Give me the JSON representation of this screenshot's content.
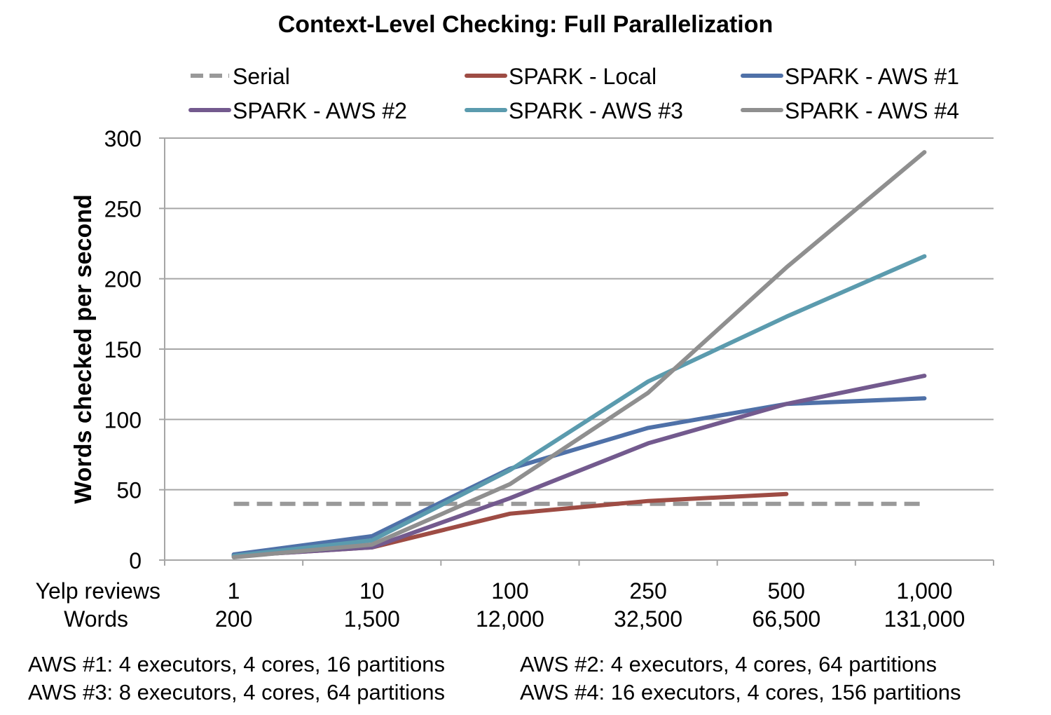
{
  "chart_data": {
    "type": "line",
    "title": "Context-Level Checking: Full Parallelization",
    "ylabel": "Words checked per second",
    "ylim": [
      0,
      300
    ],
    "yticks": [
      "0",
      "50",
      "100",
      "150",
      "200",
      "250",
      "300"
    ],
    "ytick_values": [
      0,
      50,
      100,
      150,
      200,
      250,
      300
    ],
    "x_row_labels": [
      "Yelp reviews",
      "Words"
    ],
    "x_reviews": [
      "1",
      "10",
      "100",
      "250",
      "500",
      "1,000"
    ],
    "x_words": [
      "200",
      "1,500",
      "12,000",
      "32,500",
      "66,500",
      "131,000"
    ],
    "grid": true,
    "legend_position": "top",
    "series": [
      {
        "name": "Serial",
        "color": "#999999",
        "dashed": true,
        "values": [
          40,
          40,
          40,
          40,
          40,
          40
        ]
      },
      {
        "name": "SPARK - Local",
        "color": "#9e4c44",
        "dashed": false,
        "values": [
          3,
          9,
          33,
          42,
          47,
          null
        ]
      },
      {
        "name": "SPARK - AWS #1",
        "color": "#4f71a8",
        "dashed": false,
        "values": [
          4,
          17,
          65,
          94,
          111,
          115
        ]
      },
      {
        "name": "SPARK - AWS #2",
        "color": "#735a8e",
        "dashed": false,
        "values": [
          3,
          9,
          44,
          83,
          111,
          131
        ]
      },
      {
        "name": "SPARK - AWS #3",
        "color": "#5b9bae",
        "dashed": false,
        "values": [
          3,
          14,
          64,
          127,
          173,
          216
        ]
      },
      {
        "name": "SPARK - AWS #4",
        "color": "#8f8f8f",
        "dashed": false,
        "values": [
          2,
          11,
          54,
          119,
          208,
          290
        ]
      }
    ]
  },
  "notes": [
    "AWS #1: 4 executors, 4 cores, 16 partitions",
    "AWS #2: 4 executors, 4 cores, 64 partitions",
    "AWS #3: 8 executors, 4 cores, 64 partitions",
    "AWS #4: 16 executors, 4 cores, 156 partitions"
  ]
}
